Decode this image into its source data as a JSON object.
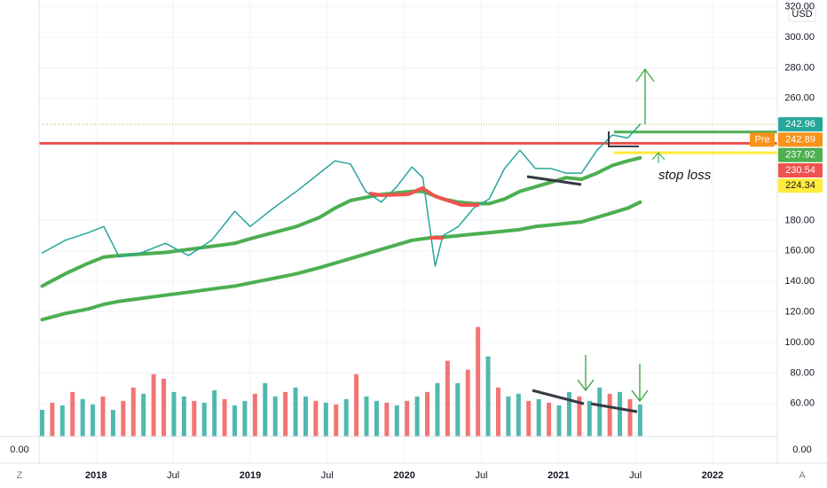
{
  "chart_data": {
    "type": "line",
    "currency": "USD",
    "xlim": [
      2017.63,
      2022.42
    ],
    "ylim": [
      38.4,
      324.4
    ],
    "xticks": [
      {
        "value": 2018,
        "label": "2018"
      },
      {
        "value": 2018.5,
        "label": "Jul"
      },
      {
        "value": 2019,
        "label": "2019"
      },
      {
        "value": 2019.5,
        "label": "Jul"
      },
      {
        "value": 2020,
        "label": "2020"
      },
      {
        "value": 2020.5,
        "label": "Jul"
      },
      {
        "value": 2021,
        "label": "2021"
      },
      {
        "value": 2021.5,
        "label": "Jul"
      },
      {
        "value": 2022,
        "label": "2022"
      }
    ],
    "yticks": [
      {
        "value": 320,
        "label": "320.00"
      },
      {
        "value": 300,
        "label": "300.00"
      },
      {
        "value": 280,
        "label": "280.00"
      },
      {
        "value": 260,
        "label": "260.00"
      },
      {
        "value": 180,
        "label": "180.00"
      },
      {
        "value": 160,
        "label": "160.00"
      },
      {
        "value": 140,
        "label": "140.00"
      },
      {
        "value": 120,
        "label": "120.00"
      },
      {
        "value": 100,
        "label": "100.00"
      },
      {
        "value": 80,
        "label": "80.00"
      },
      {
        "value": 60,
        "label": "60.00"
      }
    ],
    "grid": true,
    "x": [
      2017.65,
      2017.8,
      2017.95,
      2018.05,
      2018.15,
      2018.3,
      2018.45,
      2018.6,
      2018.75,
      2018.9,
      2019.0,
      2019.15,
      2019.3,
      2019.45,
      2019.55,
      2019.65,
      2019.75,
      2019.85,
      2019.95,
      2020.05,
      2020.12,
      2020.2,
      2020.25,
      2020.35,
      2020.45,
      2020.55,
      2020.65,
      2020.75,
      2020.85,
      2020.95,
      2021.05,
      2021.15,
      2021.25,
      2021.35,
      2021.45,
      2021.53
    ],
    "series": [
      {
        "color": "#26a69a",
        "width": 1.5,
        "values": [
          158.7,
          167,
          172,
          176,
          156,
          159,
          165,
          157,
          167,
          186,
          176,
          188,
          199,
          211,
          219,
          217,
          199,
          192,
          202,
          215,
          208,
          150,
          170,
          176,
          188,
          194,
          214,
          226,
          214,
          214,
          211,
          211,
          226,
          236,
          234,
          243
        ]
      },
      {
        "color": "#4caf50",
        "width": 4,
        "values": [
          137,
          145,
          152,
          156,
          157,
          158,
          159,
          161,
          163,
          165,
          168,
          172,
          176,
          182,
          188,
          193,
          195,
          197,
          198,
          199,
          199,
          196,
          194,
          192,
          191,
          191,
          194,
          199,
          202,
          205,
          208,
          207,
          211,
          216,
          219,
          221
        ]
      },
      {
        "color": "#4caf50",
        "width": 4,
        "values": [
          115,
          119,
          122,
          125,
          127,
          129,
          131,
          133,
          135,
          137,
          139,
          142,
          145,
          149,
          152,
          155,
          158,
          161,
          164,
          167,
          168,
          169,
          169,
          170,
          171,
          172,
          173,
          174,
          176,
          177,
          178,
          179,
          182,
          185,
          188,
          192
        ]
      }
    ],
    "volume": {
      "ylim": [
        0,
        490
      ],
      "values": [
        30,
        38,
        35,
        50,
        42,
        36,
        45,
        30,
        40,
        55,
        48,
        70,
        65,
        50,
        45,
        40,
        38,
        52,
        42,
        35,
        40,
        48,
        60,
        45,
        50,
        55,
        45,
        40,
        38,
        36,
        42,
        70,
        45,
        40,
        38,
        35,
        40,
        45,
        50,
        60,
        85,
        60,
        75,
        123,
        90,
        55,
        45,
        48,
        40,
        42,
        38,
        35,
        50,
        45,
        40,
        55,
        48,
        50,
        42,
        36
      ],
      "colors": [
        "#26a69a",
        "#ef5350",
        "#26a69a",
        "#ef5350",
        "#26a69a",
        "#26a69a",
        "#ef5350",
        "#26a69a",
        "#ef5350",
        "#ef5350",
        "#26a69a",
        "#ef5350",
        "#ef5350",
        "#26a69a",
        "#26a69a",
        "#ef5350",
        "#26a69a",
        "#26a69a",
        "#ef5350",
        "#26a69a",
        "#26a69a",
        "#ef5350",
        "#26a69a",
        "#26a69a",
        "#ef5350",
        "#26a69a",
        "#26a69a",
        "#ef5350",
        "#26a69a",
        "#ef5350",
        "#26a69a",
        "#ef5350",
        "#26a69a",
        "#26a69a",
        "#ef5350",
        "#26a69a",
        "#ef5350",
        "#26a69a",
        "#ef5350",
        "#26a69a",
        "#ef5350",
        "#26a69a",
        "#ef5350",
        "#ef5350",
        "#26a69a",
        "#ef5350",
        "#26a69a",
        "#26a69a",
        "#ef5350",
        "#26a69a",
        "#ef5350",
        "#26a69a",
        "#26a69a",
        "#ef5350",
        "#26a69a",
        "#26a69a",
        "#ef5350",
        "#26a69a",
        "#ef5350",
        "#26a69a"
      ]
    },
    "levels": [
      {
        "value": 242.96,
        "color": "#26a69a",
        "line": "#b5b832",
        "style": "dotted"
      },
      {
        "value": 242.89,
        "color": "#f7931a",
        "tag": "Pre"
      },
      {
        "value": 237.92,
        "color": "#4caf50",
        "line": "#4caf50",
        "start": 2021.36
      },
      {
        "value": 230.54,
        "color": "#ef5350",
        "line": "#ef5350"
      },
      {
        "value": 224.34,
        "color": "#ffeb3b",
        "line": "#ffeb3b",
        "start": 2021.36,
        "text_color": "#131722"
      }
    ],
    "lower_pane": {
      "yticks": [
        {
          "value": 0,
          "label": "0.00"
        }
      ]
    },
    "annotation": "stop loss",
    "corner_left": "Z",
    "corner_right": "A"
  }
}
